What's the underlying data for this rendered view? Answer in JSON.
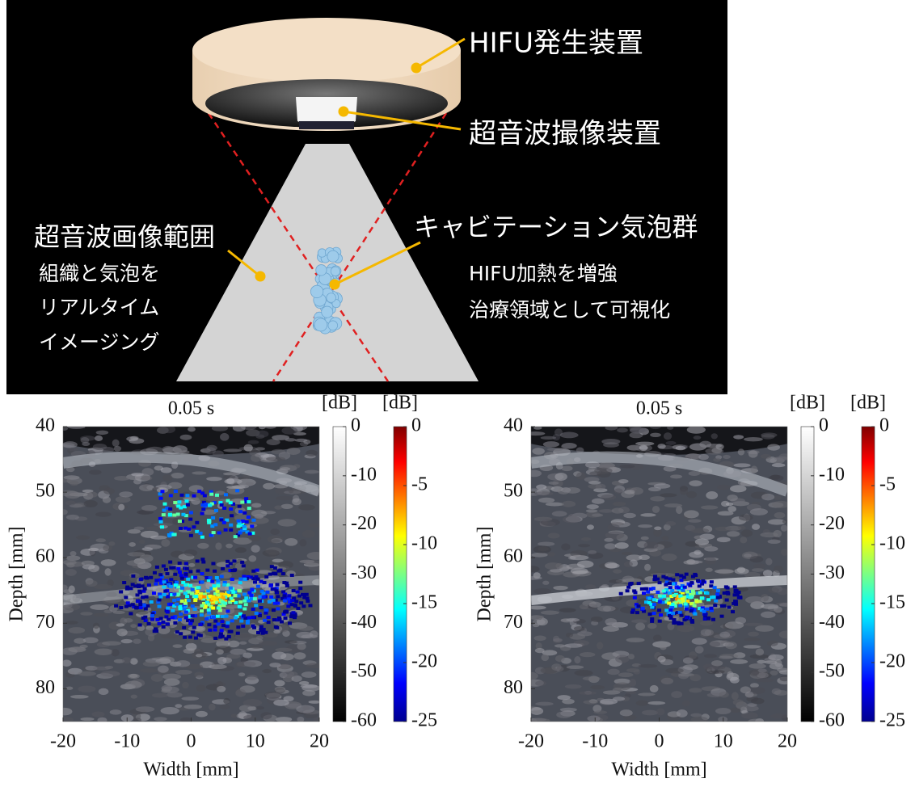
{
  "diagram": {
    "device": "HIFU発生装置",
    "probe": "超音波撮像装置",
    "range_title": "超音波画像範囲",
    "range_lines": [
      "組織と気泡を",
      "リアルタイム",
      "イメージング"
    ],
    "bubbles_title": "キャビテーション気泡群",
    "bubbles_lines": [
      "HIFU加熱を増強",
      "治療領域として可視化"
    ]
  },
  "chart_data": [
    {
      "type": "image",
      "title": "0.05 s",
      "xlabel": "Width [mm]",
      "ylabel": "Depth [mm]",
      "xlim": [
        -20,
        20
      ],
      "xticks": [
        -20,
        -10,
        0,
        10,
        20
      ],
      "ylim": [
        40,
        85
      ],
      "yticks": [
        40,
        50,
        60,
        70,
        80
      ],
      "y_reversed": true,
      "colorbars": [
        {
          "label": "[dB]",
          "colormap": "gray",
          "lim": [
            -60,
            0
          ],
          "ticks": [
            0,
            -10,
            -20,
            -30,
            -40,
            -50,
            -60
          ]
        },
        {
          "label": "[dB]",
          "colormap": "jet",
          "lim": [
            -25,
            0
          ],
          "ticks": [
            0,
            -5,
            -10,
            -15,
            -20,
            -25
          ]
        }
      ]
    },
    {
      "type": "image",
      "title": "0.05 s",
      "xlabel": "Width [mm]",
      "ylabel": "Depth [mm]",
      "xlim": [
        -20,
        20
      ],
      "xticks": [
        -20,
        -10,
        0,
        10,
        20
      ],
      "ylim": [
        40,
        85
      ],
      "yticks": [
        40,
        50,
        60,
        70,
        80
      ],
      "y_reversed": true,
      "colorbars": [
        {
          "label": "[dB]",
          "colormap": "gray",
          "lim": [
            -60,
            0
          ],
          "ticks": [
            0,
            -10,
            -20,
            -30,
            -40,
            -50,
            -60
          ]
        },
        {
          "label": "[dB]",
          "colormap": "jet",
          "lim": [
            -25,
            0
          ],
          "ticks": [
            0,
            -5,
            -10,
            -15,
            -20,
            -25
          ]
        }
      ]
    }
  ]
}
